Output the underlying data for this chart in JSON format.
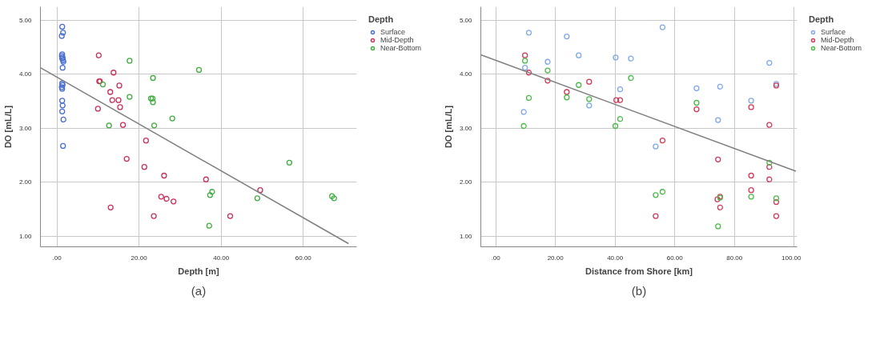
{
  "chart_data": [
    {
      "type": "scatter",
      "xlabel": "Depth [m]",
      "ylabel": "DO [mL/L]",
      "legend_title": "Depth",
      "legend": "top right",
      "grid": true,
      "marker": "circle",
      "xlim": [
        -4,
        73
      ],
      "ylim": [
        0.8,
        5.25
      ],
      "xticks": [
        {
          "value": 0,
          "label": ".00"
        },
        {
          "value": 20,
          "label": "20.00"
        },
        {
          "value": 40,
          "label": "40.00"
        },
        {
          "value": 60,
          "label": "60.00"
        }
      ],
      "yticks": [
        {
          "value": 1,
          "label": "1.00"
        },
        {
          "value": 2,
          "label": "2.00"
        },
        {
          "value": 3,
          "label": "3.00"
        },
        {
          "value": 4,
          "label": "4.00"
        },
        {
          "value": 5,
          "label": "5.00"
        }
      ],
      "annotations": [
        "(a)"
      ],
      "series": [
        {
          "name": "Surface",
          "color": "#4a6fd0",
          "x": [
            1.3,
            1.5,
            1.2,
            1.3,
            1.2,
            1.4,
            1.3,
            1.5,
            1.6,
            1.4,
            1.3,
            1.4,
            1.2,
            1.3,
            1.3,
            1.4,
            1.3,
            1.6,
            1.5
          ],
          "values": [
            4.88,
            4.77,
            4.71,
            4.37,
            4.34,
            4.31,
            4.29,
            4.26,
            4.23,
            4.12,
            3.83,
            3.8,
            3.76,
            3.73,
            3.51,
            3.42,
            3.31,
            3.16,
            2.67
          ]
        },
        {
          "name": "Mid-Depth",
          "color": "#c8325a",
          "x": [
            10.2,
            10.5,
            10.3,
            13.8,
            15.2,
            13.0,
            13.5,
            15.0,
            15.4,
            10.0,
            16.1,
            21.7,
            17.0,
            21.3,
            26.1,
            25.4,
            26.7,
            28.4,
            13.1,
            23.6,
            36.3,
            49.5,
            42.2
          ],
          "values": [
            4.35,
            3.87,
            3.87,
            4.03,
            3.79,
            3.67,
            3.52,
            3.52,
            3.39,
            3.36,
            3.06,
            2.77,
            2.43,
            2.28,
            2.12,
            1.73,
            1.69,
            1.64,
            1.53,
            1.37,
            2.05,
            1.85,
            1.37
          ]
        },
        {
          "name": "Near-Bottom",
          "color": "#3fae3f",
          "x": [
            17.7,
            23.4,
            11.2,
            17.7,
            22.9,
            23.3,
            23.4,
            12.7,
            23.7,
            28.1,
            34.6,
            56.6,
            37.8,
            37.3,
            48.8,
            37.1,
            67.0,
            67.5
          ],
          "values": [
            4.25,
            3.93,
            3.81,
            3.58,
            3.55,
            3.55,
            3.48,
            3.05,
            3.05,
            3.18,
            4.08,
            2.36,
            1.82,
            1.76,
            1.7,
            1.19,
            1.74,
            1.7
          ]
        },
        {
          "type": "line",
          "marker": "none",
          "color": "#808080",
          "x": [
            -4,
            71
          ],
          "values": [
            4.12,
            0.86
          ]
        }
      ]
    },
    {
      "type": "scatter",
      "xlabel": "Distance from Shore [km]",
      "ylabel": "DO [mL/L]",
      "legend_title": "Depth",
      "legend": "top right",
      "grid": true,
      "marker": "circle",
      "xlim": [
        -5,
        101
      ],
      "ylim": [
        0.8,
        5.25
      ],
      "xticks": [
        {
          "value": 0,
          "label": ".00"
        },
        {
          "value": 20,
          "label": "20.00"
        },
        {
          "value": 40,
          "label": "40.00"
        },
        {
          "value": 60,
          "label": "60.00"
        },
        {
          "value": 80,
          "label": "80.00"
        },
        {
          "value": 100,
          "label": "100.00"
        }
      ],
      "yticks": [
        {
          "value": 1,
          "label": "1.00"
        },
        {
          "value": 2,
          "label": "2.00"
        },
        {
          "value": 3,
          "label": "3.00"
        },
        {
          "value": 4,
          "label": "4.00"
        },
        {
          "value": 5,
          "label": "5.00"
        }
      ],
      "annotations": [
        "(b)"
      ],
      "series": [
        {
          "name": "Surface",
          "color": "#7fa8ea",
          "x": [
            11.1,
            23.8,
            27.8,
            17.4,
            9.8,
            31.3,
            9.4,
            40.2,
            55.9,
            45.3,
            41.7,
            67.3,
            75.2,
            74.5,
            85.6,
            91.7,
            94.0,
            53.6
          ],
          "values": [
            4.77,
            4.7,
            4.35,
            4.23,
            4.12,
            3.42,
            3.3,
            4.31,
            4.87,
            4.29,
            3.72,
            3.74,
            3.77,
            3.15,
            3.51,
            4.21,
            3.82,
            2.66
          ]
        },
        {
          "name": "Mid-Depth",
          "color": "#d23c5a",
          "x": [
            9.8,
            11.1,
            17.4,
            23.8,
            31.3,
            40.4,
            41.7,
            67.3,
            55.9,
            85.6,
            91.7,
            94.0,
            74.5,
            85.6,
            91.7,
            91.7,
            85.6,
            75.2,
            74.3,
            75.2,
            53.6,
            94.0,
            94.0
          ],
          "values": [
            4.35,
            4.03,
            3.88,
            3.67,
            3.86,
            3.52,
            3.52,
            3.35,
            2.77,
            3.39,
            3.06,
            3.79,
            2.42,
            2.12,
            2.28,
            2.05,
            1.85,
            1.73,
            1.68,
            1.53,
            1.37,
            1.63,
            1.37
          ]
        },
        {
          "name": "Near-Bottom",
          "color": "#4cbb4c",
          "x": [
            9.8,
            17.4,
            11.1,
            27.8,
            23.8,
            31.3,
            9.4,
            40.1,
            45.3,
            41.7,
            67.3,
            91.7,
            53.6,
            55.9,
            75.2,
            85.6,
            94.0,
            74.5
          ],
          "values": [
            4.25,
            4.07,
            3.56,
            3.8,
            3.57,
            3.54,
            3.04,
            3.04,
            3.93,
            3.17,
            3.47,
            2.36,
            1.76,
            1.82,
            1.71,
            1.73,
            1.7,
            1.18
          ]
        },
        {
          "type": "line",
          "marker": "none",
          "color": "#808080",
          "x": [
            -5,
            100.6
          ],
          "values": [
            4.36,
            2.2
          ]
        }
      ]
    }
  ]
}
